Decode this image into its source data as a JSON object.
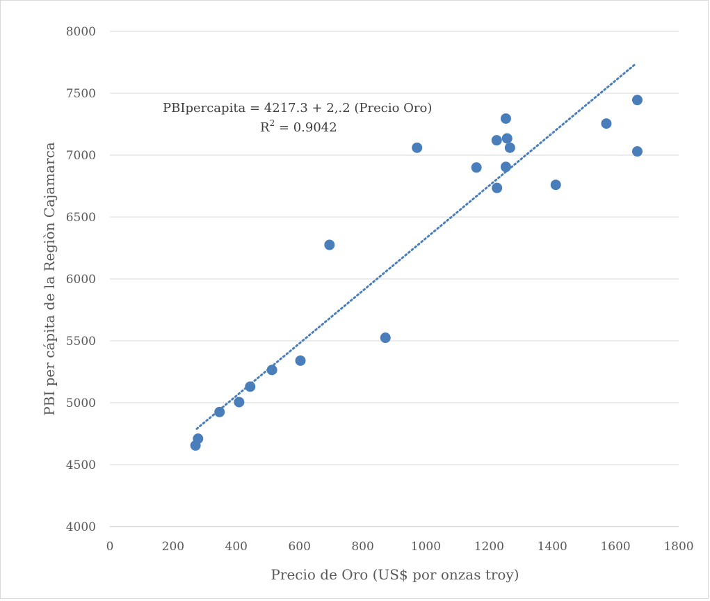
{
  "chart_data": {
    "type": "scatter",
    "xlabel": "Precio de Oro (US$ por onzas troy)",
    "ylabel": "PBI per cápita de la Regiòn Cajamarca",
    "xlim": [
      0,
      1800
    ],
    "ylim": [
      4000,
      8000
    ],
    "x_ticks": [
      0,
      200,
      400,
      600,
      800,
      1000,
      1200,
      1400,
      1600,
      1800
    ],
    "y_ticks": [
      4000,
      4500,
      5000,
      5500,
      6000,
      6500,
      7000,
      7500,
      8000
    ],
    "x_tick_labels": [
      "0",
      "200",
      "400",
      "600",
      "800",
      "1000",
      "1200",
      "1400",
      "1600",
      "1800"
    ],
    "y_tick_labels": [
      "4000",
      "4500",
      "5000",
      "5500",
      "6000",
      "6500",
      "7000",
      "7500",
      "8000"
    ],
    "grid": "horizontal",
    "legend": "none",
    "colors": {
      "points": "#4a7ebb",
      "trendline": "#4a7ebb",
      "grid": "#d9d9d9"
    },
    "points": [
      {
        "x": 271,
        "y": 4655
      },
      {
        "x": 279,
        "y": 4710
      },
      {
        "x": 347,
        "y": 4925
      },
      {
        "x": 409,
        "y": 5005
      },
      {
        "x": 444,
        "y": 5130
      },
      {
        "x": 513,
        "y": 5265
      },
      {
        "x": 603,
        "y": 5340
      },
      {
        "x": 872,
        "y": 5525
      },
      {
        "x": 695,
        "y": 6275
      },
      {
        "x": 972,
        "y": 7060
      },
      {
        "x": 1225,
        "y": 6735
      },
      {
        "x": 1253,
        "y": 6905
      },
      {
        "x": 1224,
        "y": 7120
      },
      {
        "x": 1253,
        "y": 7295
      },
      {
        "x": 1160,
        "y": 6900
      },
      {
        "x": 1257,
        "y": 7135
      },
      {
        "x": 1266,
        "y": 7060
      },
      {
        "x": 1411,
        "y": 6760
      },
      {
        "x": 1571,
        "y": 7255
      },
      {
        "x": 1669,
        "y": 7030
      },
      {
        "x": 1669,
        "y": 7445
      }
    ],
    "trendline": {
      "type": "linear",
      "style": "dotted",
      "x_start": 275,
      "x_end": 1665,
      "y_start": 4790,
      "y_end": 7740
    },
    "annotation": {
      "equation": "PBIpercapita = 4217.3 + 2,.2 (Precio Oro)",
      "r2_prefix": "R",
      "r2_sup": "2",
      "r2_value": " = 0.9042"
    }
  }
}
